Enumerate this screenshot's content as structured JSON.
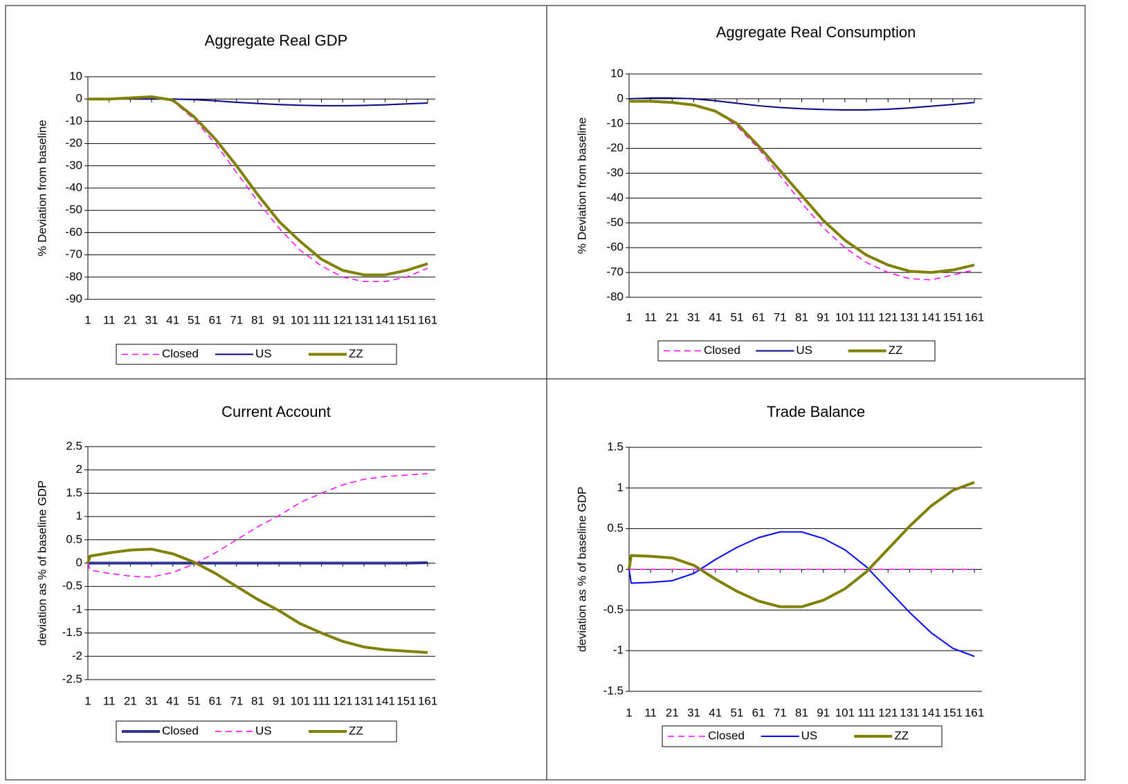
{
  "chart_data": [
    {
      "type": "line",
      "title": "Aggregate Real GDP",
      "y_label": "%  Deviation from baseline",
      "x": [
        1,
        11,
        21,
        31,
        41,
        51,
        61,
        71,
        81,
        91,
        101,
        111,
        121,
        131,
        141,
        151,
        161
      ],
      "xlim": [
        1,
        161
      ],
      "xticks": [
        1,
        11,
        21,
        31,
        41,
        51,
        61,
        71,
        81,
        91,
        101,
        111,
        121,
        131,
        141,
        151,
        161
      ],
      "ylim": [
        -90,
        10
      ],
      "yticks": [
        10,
        0,
        -10,
        -20,
        -30,
        -40,
        -50,
        -60,
        -70,
        -80,
        -90
      ],
      "grid": true,
      "series": [
        {
          "name": "Closed",
          "color": "#ff00ff",
          "style": "dashed",
          "values": [
            0,
            0,
            0.5,
            1,
            -1,
            -9,
            -20,
            -33,
            -46,
            -58,
            -68,
            -75,
            -80,
            -82,
            -82,
            -80,
            -76
          ]
        },
        {
          "name": "US",
          "color": "#000080",
          "style": "solid",
          "values": [
            0,
            0,
            0,
            0,
            0,
            -0.3,
            -0.8,
            -1.5,
            -2,
            -2.5,
            -2.8,
            -3,
            -3,
            -2.9,
            -2.6,
            -2.2,
            -1.8
          ]
        },
        {
          "name": "ZZ",
          "color": "#808000",
          "style": "thick",
          "values": [
            0,
            0,
            0.5,
            1,
            -0.5,
            -8,
            -18,
            -30,
            -43,
            -55,
            -64,
            -72,
            -77,
            -79,
            -79,
            -77,
            -74
          ]
        }
      ]
    },
    {
      "type": "line",
      "title": "Aggregate Real Consumption",
      "y_label": "%  Deviation from baseline",
      "x": [
        1,
        11,
        21,
        31,
        41,
        51,
        61,
        71,
        81,
        91,
        101,
        111,
        121,
        131,
        141,
        151,
        161
      ],
      "xlim": [
        1,
        161
      ],
      "xticks": [
        1,
        11,
        21,
        31,
        41,
        51,
        61,
        71,
        81,
        91,
        101,
        111,
        121,
        131,
        141,
        151,
        161
      ],
      "ylim": [
        -80,
        10
      ],
      "yticks": [
        10,
        0,
        -10,
        -20,
        -30,
        -40,
        -50,
        -60,
        -70,
        -80
      ],
      "grid": true,
      "series": [
        {
          "name": "Closed",
          "color": "#ff00ff",
          "style": "dashed",
          "values": [
            -1,
            -1,
            -1.5,
            -2.5,
            -5,
            -11,
            -20,
            -31,
            -42,
            -52,
            -60,
            -66,
            -70,
            -72.5,
            -73,
            -71,
            -69
          ]
        },
        {
          "name": "US",
          "color": "#000080",
          "style": "solid",
          "values": [
            0,
            0.3,
            0.3,
            0,
            -0.8,
            -1.8,
            -2.8,
            -3.5,
            -4,
            -4.3,
            -4.5,
            -4.5,
            -4.2,
            -3.7,
            -3,
            -2.3,
            -1.5
          ]
        },
        {
          "name": "ZZ",
          "color": "#808000",
          "style": "thick",
          "values": [
            -1,
            -1,
            -1.5,
            -2.5,
            -5,
            -10,
            -19,
            -29,
            -39,
            -49,
            -57,
            -63,
            -67,
            -69.5,
            -70,
            -69,
            -67
          ]
        }
      ]
    },
    {
      "type": "line",
      "title": "Current Account",
      "y_label": "deviation as % of baseline GDP",
      "x": [
        1,
        2,
        11,
        21,
        31,
        41,
        51,
        61,
        71,
        81,
        91,
        101,
        111,
        121,
        131,
        141,
        151,
        161
      ],
      "xlim": [
        1,
        161
      ],
      "xticks": [
        1,
        11,
        21,
        31,
        41,
        51,
        61,
        71,
        81,
        91,
        101,
        111,
        121,
        131,
        141,
        151,
        161
      ],
      "ylim": [
        -2.5,
        2.5
      ],
      "yticks": [
        2.5,
        2,
        1.5,
        1,
        0.5,
        0,
        -0.5,
        -1,
        -1.5,
        -2,
        -2.5
      ],
      "grid": true,
      "series": [
        {
          "name": "Closed",
          "color": "#2e3192",
          "style": "thick",
          "values": [
            0,
            0,
            0,
            0,
            0,
            0,
            0,
            0,
            0,
            0,
            0,
            0,
            0,
            0,
            0,
            0,
            0,
            0.01
          ]
        },
        {
          "name": "US",
          "color": "#ff00ff",
          "style": "dashed",
          "values": [
            0,
            -0.15,
            -0.22,
            -0.28,
            -0.3,
            -0.2,
            -0.02,
            0.22,
            0.5,
            0.78,
            1.02,
            1.3,
            1.5,
            1.68,
            1.8,
            1.86,
            1.89,
            1.92
          ]
        },
        {
          "name": "ZZ",
          "color": "#808000",
          "style": "thick",
          "values": [
            0,
            0.15,
            0.22,
            0.28,
            0.3,
            0.2,
            0.02,
            -0.22,
            -0.5,
            -0.78,
            -1.02,
            -1.3,
            -1.5,
            -1.68,
            -1.8,
            -1.86,
            -1.89,
            -1.92
          ]
        }
      ]
    },
    {
      "type": "line",
      "title": "Trade Balance",
      "y_label": "deviation as % of baseline GDP",
      "x": [
        1,
        2,
        11,
        21,
        31,
        41,
        51,
        61,
        71,
        81,
        91,
        101,
        111,
        121,
        131,
        141,
        151,
        161
      ],
      "xlim": [
        1,
        161
      ],
      "xticks": [
        1,
        11,
        21,
        31,
        41,
        51,
        61,
        71,
        81,
        91,
        101,
        111,
        121,
        131,
        141,
        151,
        161
      ],
      "ylim": [
        -1.5,
        1.5
      ],
      "yticks": [
        1.5,
        1,
        0.5,
        0,
        -0.5,
        -1,
        -1.5
      ],
      "grid": true,
      "series": [
        {
          "name": "Closed",
          "color": "#ff00ff",
          "style": "dashed",
          "values": [
            0,
            0,
            0,
            0,
            0,
            0,
            0,
            0,
            0,
            0,
            0,
            0,
            0,
            0,
            0,
            0,
            0,
            0
          ]
        },
        {
          "name": "US",
          "color": "#0000ff",
          "style": "solid",
          "values": [
            0,
            -0.17,
            -0.16,
            -0.14,
            -0.05,
            0.12,
            0.27,
            0.39,
            0.46,
            0.46,
            0.38,
            0.24,
            0.03,
            -0.25,
            -0.53,
            -0.78,
            -0.97,
            -1.07
          ]
        },
        {
          "name": "ZZ",
          "color": "#808000",
          "style": "thick",
          "values": [
            0,
            0.17,
            0.16,
            0.14,
            0.05,
            -0.12,
            -0.27,
            -0.39,
            -0.46,
            -0.46,
            -0.38,
            -0.24,
            -0.03,
            0.25,
            0.53,
            0.78,
            0.97,
            1.07
          ]
        }
      ]
    }
  ]
}
